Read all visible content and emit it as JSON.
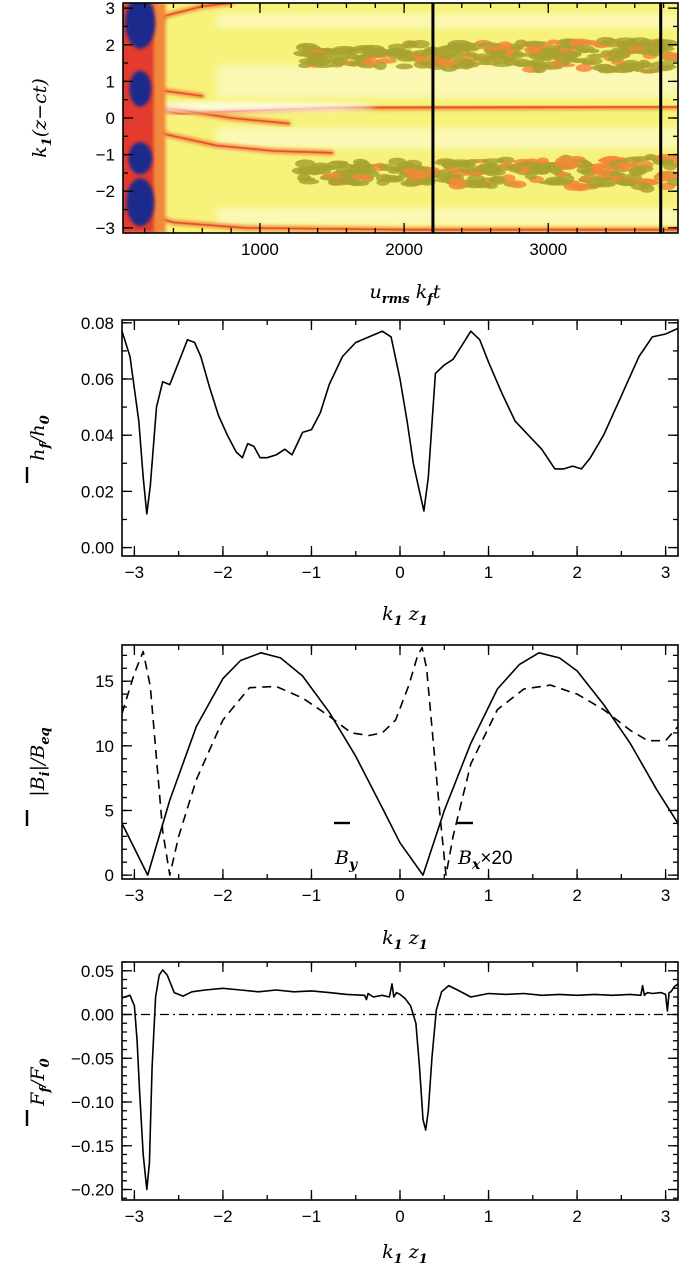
{
  "chart_data": [
    {
      "type": "heatmap",
      "xlabel": "u_rms k_f t",
      "ylabel": "k_1(z−ct)",
      "xlim": [
        50,
        3900
      ],
      "ylim": [
        -3.14,
        3.14
      ],
      "xticks": [
        1000,
        2000,
        3000
      ],
      "yticks": [
        -3,
        -2,
        -1,
        0,
        1,
        2,
        3
      ],
      "vertical_lines": [
        2200,
        3780
      ],
      "colors": {
        "low": "#fffde0",
        "mid": "#f2ee4a",
        "olive": "#a8a230",
        "orange": "#f2883a",
        "red": "#e33b2e",
        "blue": "#1a2a8c"
      }
    },
    {
      "type": "line",
      "xlabel": "k_1 z_1",
      "ylabel": "h_f/h_0",
      "xlim": [
        -3.14,
        3.14
      ],
      "ylim": [
        -0.003,
        0.081
      ],
      "xticks": [
        -3,
        -2,
        -1,
        0,
        1,
        2,
        3
      ],
      "yticks": [
        0.0,
        0.02,
        0.04,
        0.06,
        0.08
      ],
      "series": [
        {
          "style": "solid",
          "x": [
            -3.14,
            -3.05,
            -2.95,
            -2.9,
            -2.86,
            -2.82,
            -2.75,
            -2.68,
            -2.6,
            -2.5,
            -2.4,
            -2.32,
            -2.25,
            -2.15,
            -2.05,
            -1.95,
            -1.85,
            -1.78,
            -1.72,
            -1.65,
            -1.58,
            -1.5,
            -1.4,
            -1.3,
            -1.22,
            -1.1,
            -1.0,
            -0.9,
            -0.8,
            -0.65,
            -0.5,
            -0.35,
            -0.2,
            -0.1,
            0.0,
            0.08,
            0.15,
            0.22,
            0.27,
            0.32,
            0.4,
            0.5,
            0.6,
            0.7,
            0.8,
            0.9,
            1.0,
            1.15,
            1.3,
            1.45,
            1.6,
            1.75,
            1.85,
            1.95,
            2.05,
            2.15,
            2.3,
            2.5,
            2.7,
            2.85,
            3.0,
            3.14
          ],
          "values": [
            0.077,
            0.068,
            0.045,
            0.025,
            0.012,
            0.022,
            0.05,
            0.059,
            0.058,
            0.066,
            0.074,
            0.073,
            0.068,
            0.057,
            0.047,
            0.04,
            0.034,
            0.032,
            0.037,
            0.036,
            0.032,
            0.032,
            0.033,
            0.035,
            0.033,
            0.041,
            0.042,
            0.048,
            0.058,
            0.068,
            0.073,
            0.075,
            0.077,
            0.075,
            0.06,
            0.045,
            0.03,
            0.02,
            0.013,
            0.025,
            0.062,
            0.065,
            0.067,
            0.072,
            0.077,
            0.074,
            0.066,
            0.055,
            0.045,
            0.04,
            0.035,
            0.028,
            0.028,
            0.029,
            0.028,
            0.032,
            0.04,
            0.054,
            0.068,
            0.075,
            0.076,
            0.078
          ]
        }
      ]
    },
    {
      "type": "line",
      "xlabel": "k_1 z_1",
      "ylabel": "|B_i|/B_eq",
      "xlim": [
        -3.14,
        3.14
      ],
      "ylim": [
        -0.3,
        17.8
      ],
      "xticks": [
        -3,
        -2,
        -1,
        0,
        1,
        2,
        3
      ],
      "yticks": [
        0,
        5,
        10,
        15
      ],
      "annotations": [
        "B_y",
        "B_x×20"
      ],
      "series": [
        {
          "style": "solid",
          "x": [
            -3.14,
            -2.85,
            -2.6,
            -2.3,
            -2.0,
            -1.8,
            -1.57,
            -1.35,
            -1.1,
            -0.8,
            -0.5,
            -0.2,
            0.0,
            0.26,
            0.5,
            0.8,
            1.1,
            1.35,
            1.57,
            1.8,
            2.0,
            2.3,
            2.6,
            2.9,
            3.14
          ],
          "values": [
            4.0,
            0.0,
            5.8,
            11.5,
            15.2,
            16.6,
            17.2,
            16.8,
            15.4,
            12.6,
            9.2,
            5.2,
            2.5,
            0.0,
            5.0,
            10.2,
            14.4,
            16.3,
            17.2,
            16.8,
            15.8,
            13.2,
            10.2,
            6.6,
            4.0
          ]
        },
        {
          "style": "dashed",
          "x": [
            -3.14,
            -3.0,
            -2.9,
            -2.82,
            -2.75,
            -2.68,
            -2.6,
            -2.5,
            -2.3,
            -2.0,
            -1.7,
            -1.4,
            -1.1,
            -0.8,
            -0.55,
            -0.35,
            -0.2,
            -0.05,
            0.1,
            0.2,
            0.25,
            0.3,
            0.38,
            0.45,
            0.52,
            0.6,
            0.8,
            1.1,
            1.4,
            1.7,
            2.0,
            2.3,
            2.6,
            2.8,
            3.0,
            3.14
          ],
          "values": [
            12.5,
            15.6,
            17.3,
            14.6,
            9.0,
            3.4,
            0.0,
            3.0,
            7.4,
            12.0,
            14.5,
            14.6,
            13.7,
            12.3,
            11.0,
            10.8,
            11.0,
            12.0,
            14.7,
            17.0,
            17.6,
            16.0,
            10.0,
            4.8,
            0.0,
            3.0,
            8.6,
            12.8,
            14.4,
            14.7,
            14.0,
            12.8,
            11.2,
            10.4,
            10.4,
            11.5
          ]
        }
      ]
    },
    {
      "type": "line",
      "xlabel": "k_1 z_1",
      "ylabel": "F_f/F_0",
      "xlim": [
        -3.14,
        3.14
      ],
      "ylim": [
        -0.212,
        0.06
      ],
      "xticks": [
        -3,
        -2,
        -1,
        0,
        1,
        2,
        3
      ],
      "yticks": [
        -0.2,
        -0.15,
        -0.1,
        -0.05,
        0.0,
        0.05
      ],
      "reference_line": {
        "y": 0.0,
        "style": "dash-dot"
      },
      "series": [
        {
          "style": "solid",
          "x": [
            -3.14,
            -3.05,
            -3.0,
            -2.97,
            -2.94,
            -2.9,
            -2.86,
            -2.83,
            -2.8,
            -2.76,
            -2.72,
            -2.68,
            -2.63,
            -2.55,
            -2.45,
            -2.35,
            -2.2,
            -2.0,
            -1.8,
            -1.6,
            -1.4,
            -1.2,
            -1.0,
            -0.8,
            -0.6,
            -0.4,
            -0.38,
            -0.36,
            -0.3,
            -0.2,
            -0.12,
            -0.09,
            -0.07,
            -0.04,
            0.0,
            0.06,
            0.12,
            0.18,
            0.22,
            0.26,
            0.29,
            0.32,
            0.36,
            0.41,
            0.47,
            0.55,
            0.65,
            0.8,
            1.0,
            1.2,
            1.4,
            1.6,
            1.8,
            2.0,
            2.2,
            2.4,
            2.6,
            2.72,
            2.74,
            2.76,
            2.78,
            2.8,
            2.85,
            2.95,
            3.0,
            3.02,
            3.04,
            3.06,
            3.1,
            3.14
          ],
          "values": [
            0.019,
            0.022,
            0.01,
            -0.03,
            -0.09,
            -0.16,
            -0.2,
            -0.17,
            -0.06,
            0.02,
            0.045,
            0.051,
            0.045,
            0.025,
            0.021,
            0.026,
            0.028,
            0.03,
            0.028,
            0.026,
            0.028,
            0.026,
            0.027,
            0.025,
            0.023,
            0.022,
            0.017,
            0.024,
            0.02,
            0.022,
            0.02,
            0.035,
            0.02,
            0.025,
            0.023,
            0.018,
            0.01,
            -0.01,
            -0.06,
            -0.12,
            -0.132,
            -0.11,
            -0.05,
            0.005,
            0.026,
            0.033,
            0.028,
            0.02,
            0.024,
            0.023,
            0.024,
            0.022,
            0.023,
            0.022,
            0.023,
            0.022,
            0.023,
            0.022,
            0.033,
            0.022,
            0.024,
            0.025,
            0.024,
            0.025,
            0.023,
            0.004,
            0.025,
            0.026,
            0.032,
            0.035
          ]
        }
      ]
    }
  ]
}
